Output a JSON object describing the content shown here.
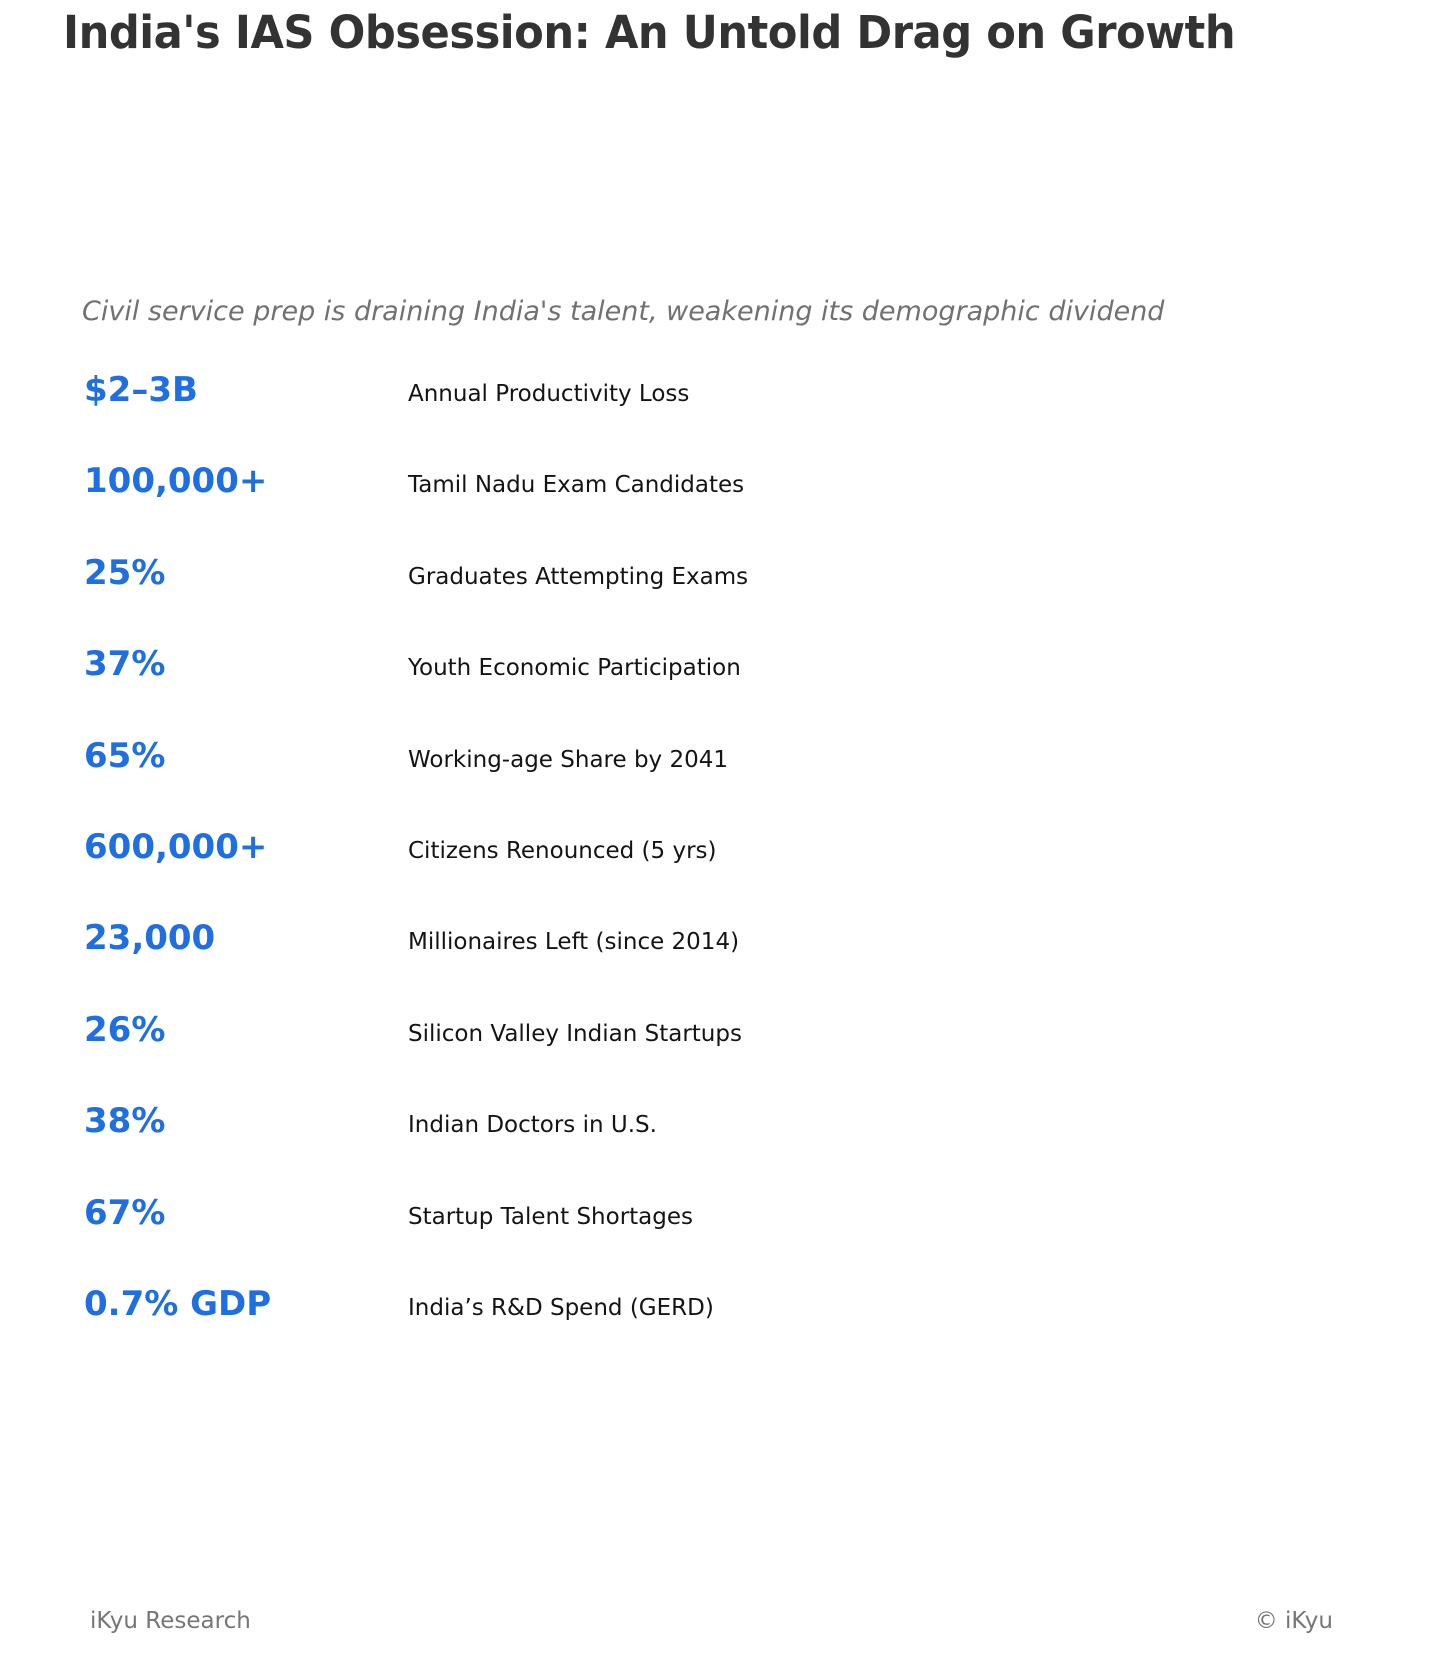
{
  "title": "India's IAS Obsession: An Untold Drag on Growth",
  "subtitle": "Civil service prep is draining India's talent, weakening its demographic dividend",
  "stats": [
    {
      "value": "$2–3B",
      "label": "Annual Productivity Loss"
    },
    {
      "value": "100,000+",
      "label": "Tamil Nadu Exam Candidates"
    },
    {
      "value": "25%",
      "label": "Graduates Attempting Exams"
    },
    {
      "value": "37%",
      "label": "Youth Economic Participation"
    },
    {
      "value": "65%",
      "label": "Working-age Share by 2041"
    },
    {
      "value": "600,000+",
      "label": "Citizens Renounced (5 yrs)"
    },
    {
      "value": "23,000",
      "label": "Millionaires Left (since 2014)"
    },
    {
      "value": "26%",
      "label": "Silicon Valley Indian Startups"
    },
    {
      "value": "38%",
      "label": "Indian Doctors in U.S."
    },
    {
      "value": "67%",
      "label": "Startup Talent Shortages"
    },
    {
      "value": "0.7% GDP",
      "label": "India’s R&D Spend (GERD)"
    }
  ],
  "footer": {
    "left": "iKyu Research",
    "right": "© iKyu"
  },
  "colors": {
    "accent": "#1f6fe0",
    "title": "#333333",
    "label": "#141414",
    "subtitle": "#717171",
    "footer": "#767676",
    "background": "#ffffff"
  },
  "chart_data": {
    "type": "table",
    "title": "India's IAS Obsession: An Untold Drag on Growth",
    "subtitle": "Civil service prep is draining India's talent, weakening its demographic dividend",
    "columns": [
      "value",
      "label"
    ],
    "rows": [
      [
        "$2–3B",
        "Annual Productivity Loss"
      ],
      [
        "100,000+",
        "Tamil Nadu Exam Candidates"
      ],
      [
        "25%",
        "Graduates Attempting Exams"
      ],
      [
        "37%",
        "Youth Economic Participation"
      ],
      [
        "65%",
        "Working-age Share by 2041"
      ],
      [
        "600,000+",
        "Citizens Renounced (5 yrs)"
      ],
      [
        "23,000",
        "Millionaires Left (since 2014)"
      ],
      [
        "26%",
        "Silicon Valley Indian Startups"
      ],
      [
        "38%",
        "Indian Doctors in U.S."
      ],
      [
        "67%",
        "Startup Talent Shortages"
      ],
      [
        "0.7% GDP",
        "India’s R&D Spend (GERD)"
      ]
    ],
    "legend": false,
    "grid": false
  }
}
